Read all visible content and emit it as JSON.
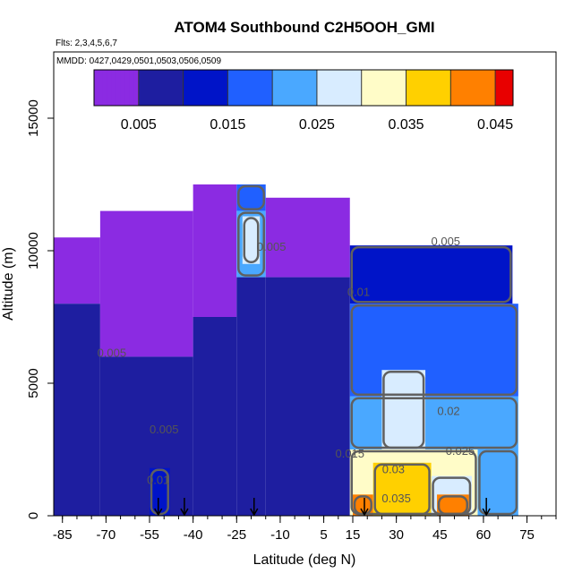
{
  "chart_data": {
    "type": "heatmap",
    "title": "ATOM4 Southbound C2H5OOH_GMI",
    "annotations": [
      "Flts: 2,3,4,5,6,7",
      "MMDD: 0427,0429,0501,0503,0506,0509"
    ],
    "xlabel": "Latitude (deg N)",
    "ylabel": "Altitude (m)",
    "xlim": [
      -88,
      85
    ],
    "ylim": [
      0,
      17500
    ],
    "x_ticks": [
      -85,
      -70,
      -55,
      -40,
      -25,
      -10,
      5,
      15,
      30,
      45,
      60,
      75
    ],
    "x_tick_labels": [
      "-85",
      "-70",
      "-55",
      "-40",
      "-25",
      "-10",
      "5",
      "15",
      "30",
      "45",
      "60",
      "75"
    ],
    "y_ticks": [
      0,
      5000,
      10000,
      15000
    ],
    "y_tick_labels": [
      "0",
      "5000",
      "10000",
      "15000"
    ],
    "colorbar": {
      "range": [
        0,
        0.047
      ],
      "ticks": [
        0.005,
        0.015,
        0.025,
        0.035,
        0.045
      ],
      "tick_labels": [
        "0.005",
        "0.015",
        "0.025",
        "0.035",
        "0.045"
      ],
      "boundaries": [
        0.0,
        0.005,
        0.01,
        0.015,
        0.02,
        0.025,
        0.03,
        0.035,
        0.04,
        0.045,
        0.047
      ],
      "colors": [
        "#8b2be2",
        "#1e1ea0",
        "#0014c8",
        "#2060ff",
        "#4aa8ff",
        "#d8ecff",
        "#fffcc8",
        "#ffd000",
        "#ff8000",
        "#e80000",
        "#a01818"
      ]
    },
    "contour_labels": [
      {
        "text": "0.005",
        "lat": -68,
        "alt": 6000
      },
      {
        "text": "0.005",
        "lat": -50,
        "alt": 3100
      },
      {
        "text": "0.01",
        "lat": -52,
        "alt": 1200
      },
      {
        "text": "0.005",
        "lat": -13,
        "alt": 10000
      },
      {
        "text": "0.005",
        "lat": 47,
        "alt": 10200
      },
      {
        "text": "0.01",
        "lat": 17,
        "alt": 8300
      },
      {
        "text": "0.02",
        "lat": 48,
        "alt": 3800
      },
      {
        "text": "0.025",
        "lat": 52,
        "alt": 2300
      },
      {
        "text": "0.015",
        "lat": 14,
        "alt": 2200
      },
      {
        "text": "0.03",
        "lat": 29,
        "alt": 1600
      },
      {
        "text": "0.035",
        "lat": 30,
        "alt": 500
      }
    ],
    "flight_arrows_lat": [
      -52,
      -43,
      -19,
      19,
      61
    ],
    "cells": [
      {
        "lat0": -88,
        "lat1": -72,
        "alt0": 8000,
        "alt1": 10500,
        "v": 0.002
      },
      {
        "lat0": -88,
        "lat1": -72,
        "alt0": 0,
        "alt1": 8000,
        "v": 0.006
      },
      {
        "lat0": -72,
        "lat1": -40,
        "alt0": 6000,
        "alt1": 11500,
        "v": 0.003
      },
      {
        "lat0": -72,
        "lat1": -40,
        "alt0": 0,
        "alt1": 6000,
        "v": 0.007
      },
      {
        "lat0": -60,
        "lat1": -48,
        "alt0": 0,
        "alt1": 3000,
        "v": 0.009
      },
      {
        "lat0": -55,
        "lat1": -48,
        "alt0": 0,
        "alt1": 1800,
        "v": 0.012
      },
      {
        "lat0": -40,
        "lat1": -25,
        "alt0": 7500,
        "alt1": 12500,
        "v": 0.003
      },
      {
        "lat0": -40,
        "lat1": -25,
        "alt0": 0,
        "alt1": 7500,
        "v": 0.007
      },
      {
        "lat0": -25,
        "lat1": -15,
        "alt0": 11500,
        "alt1": 12500,
        "v": 0.017
      },
      {
        "lat0": -25,
        "lat1": -15,
        "alt0": 9000,
        "alt1": 11500,
        "v": 0.021
      },
      {
        "lat0": -23,
        "lat1": -17,
        "alt0": 9500,
        "alt1": 11300,
        "v": 0.027
      },
      {
        "lat0": -25,
        "lat1": -15,
        "alt0": 0,
        "alt1": 9000,
        "v": 0.008
      },
      {
        "lat0": -15,
        "lat1": 14,
        "alt0": 9000,
        "alt1": 12000,
        "v": 0.004
      },
      {
        "lat0": -15,
        "lat1": 14,
        "alt0": 0,
        "alt1": 9000,
        "v": 0.007
      },
      {
        "lat0": 14,
        "lat1": 70,
        "alt0": 8000,
        "alt1": 10200,
        "v": 0.011
      },
      {
        "lat0": 14,
        "lat1": 72,
        "alt0": 4500,
        "alt1": 8000,
        "v": 0.017
      },
      {
        "lat0": 14,
        "lat1": 72,
        "alt0": 2500,
        "alt1": 4500,
        "v": 0.022
      },
      {
        "lat0": 25,
        "lat1": 40,
        "alt0": 2500,
        "alt1": 5500,
        "v": 0.028
      },
      {
        "lat0": 58,
        "lat1": 72,
        "alt0": 0,
        "alt1": 2500,
        "v": 0.024
      },
      {
        "lat0": 14,
        "lat1": 58,
        "alt0": 0,
        "alt1": 2500,
        "v": 0.031
      },
      {
        "lat0": 22,
        "lat1": 42,
        "alt0": 0,
        "alt1": 2000,
        "v": 0.037
      },
      {
        "lat0": 15,
        "lat1": 22,
        "alt0": 0,
        "alt1": 800,
        "v": 0.041
      },
      {
        "lat0": 42,
        "lat1": 56,
        "alt0": 0,
        "alt1": 1500,
        "v": 0.028
      },
      {
        "lat0": 44,
        "lat1": 55,
        "alt0": 0,
        "alt1": 800,
        "v": 0.043
      }
    ]
  }
}
